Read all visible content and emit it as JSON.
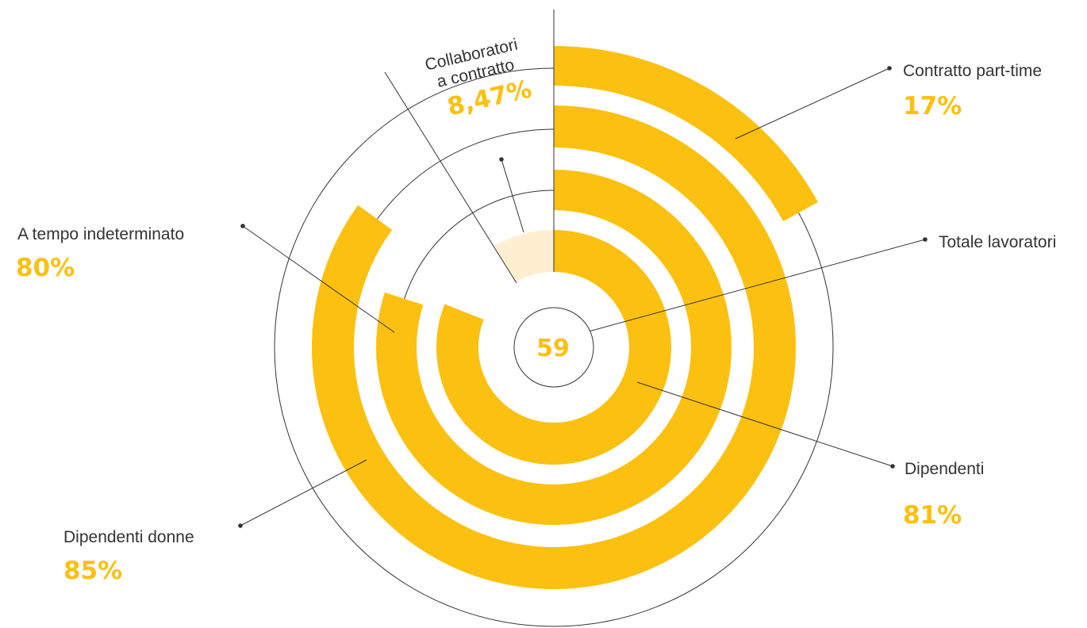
{
  "colors": {
    "accent": "#FCC010",
    "light": "#FDEFD0",
    "ink": "#333333"
  },
  "chart_data": {
    "type": "radial-bar",
    "center_value": "59",
    "center_label": "Totale lavoratori",
    "series": [
      {
        "name": "Dipendenti",
        "value": 81,
        "display": "81%"
      },
      {
        "name": "A tempo indeterminato",
        "value": 80,
        "display": "80%"
      },
      {
        "name": "Dipendenti donne",
        "value": 85,
        "display": "85%"
      },
      {
        "name": "Contratto part-time",
        "value": 17,
        "display": "17%"
      }
    ],
    "complement": {
      "line1": "Collaboratori",
      "line2": "a contratto",
      "value": 8.47,
      "display": "8,47%"
    }
  }
}
